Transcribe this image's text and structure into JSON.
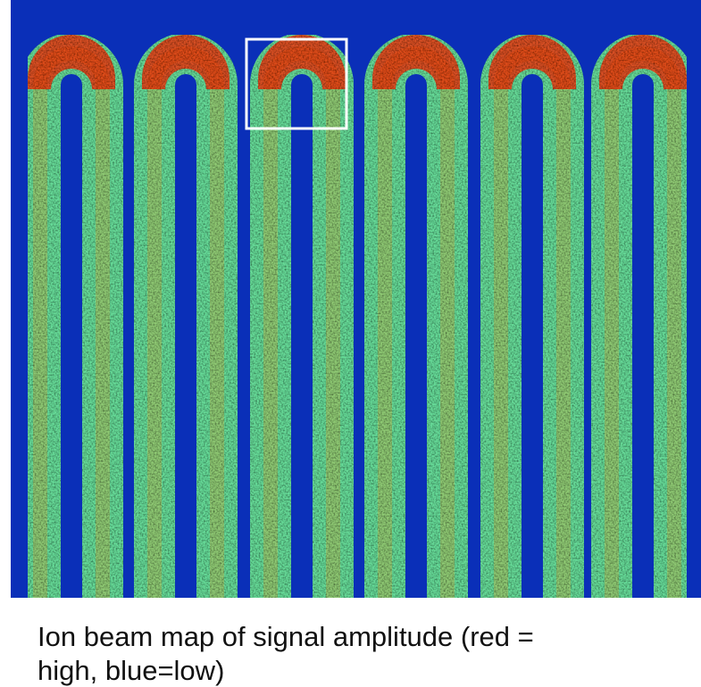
{
  "caption": {
    "lines": [
      "Ion beam map of signal amplitude (red =",
      "high, blue=low)"
    ]
  }
}
